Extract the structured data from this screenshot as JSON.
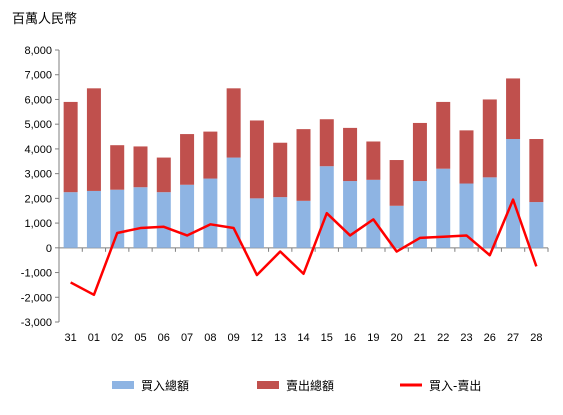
{
  "chart_data": {
    "type": "bar",
    "stacked": true,
    "unit_label": "百萬人民幣",
    "categories": [
      "31",
      "01",
      "02",
      "05",
      "06",
      "07",
      "08",
      "09",
      "12",
      "13",
      "14",
      "15",
      "16",
      "19",
      "20",
      "21",
      "22",
      "23",
      "26",
      "27",
      "28"
    ],
    "series": [
      {
        "name": "買入總額",
        "kind": "bar",
        "color": "#8EB4E3",
        "values": [
          2250,
          2300,
          2350,
          2450,
          2250,
          2550,
          2800,
          3650,
          2000,
          2050,
          1900,
          3300,
          2700,
          2750,
          1700,
          2700,
          3200,
          2600,
          2850,
          4400,
          1850
        ]
      },
      {
        "name": "賣出總額",
        "kind": "bar",
        "color": "#C0504D",
        "values": [
          3650,
          4150,
          1800,
          1650,
          1400,
          2050,
          1900,
          2800,
          3150,
          2200,
          2900,
          1900,
          2150,
          1550,
          1850,
          2350,
          2700,
          2150,
          3150,
          2450,
          2550
        ]
      },
      {
        "name": "買入-賣出",
        "kind": "line",
        "color": "#FF0000",
        "values": [
          -1400,
          -1900,
          600,
          800,
          850,
          500,
          950,
          800,
          -1100,
          -150,
          -1050,
          1400,
          500,
          1150,
          -150,
          400,
          450,
          500,
          -300,
          1950,
          -750
        ]
      }
    ],
    "y_ticks": [
      "8,000",
      "7,000",
      "6,000",
      "5,000",
      "4,000",
      "3,000",
      "2,000",
      "1,000",
      "0",
      "-1,000",
      "-2,000",
      "-3,000"
    ],
    "ylim": [
      -3000,
      8000
    ],
    "legend_position": "bottom",
    "grid": false
  }
}
